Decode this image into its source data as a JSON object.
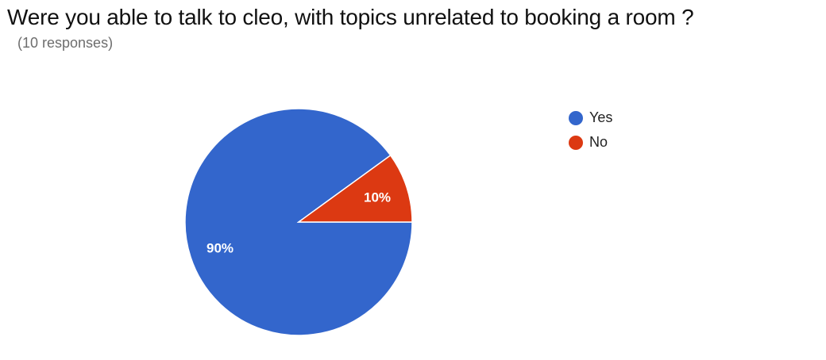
{
  "chart_data": {
    "type": "pie",
    "title": "Were you able to talk to cleo, with topics unrelated to booking a room ?",
    "subtitle": "(10 responses)",
    "categories": [
      "Yes",
      "No"
    ],
    "values": [
      90,
      10
    ],
    "value_labels": [
      "90%",
      "10%"
    ],
    "colors": [
      "#3366cc",
      "#dc3912"
    ],
    "legend_position": "right"
  }
}
